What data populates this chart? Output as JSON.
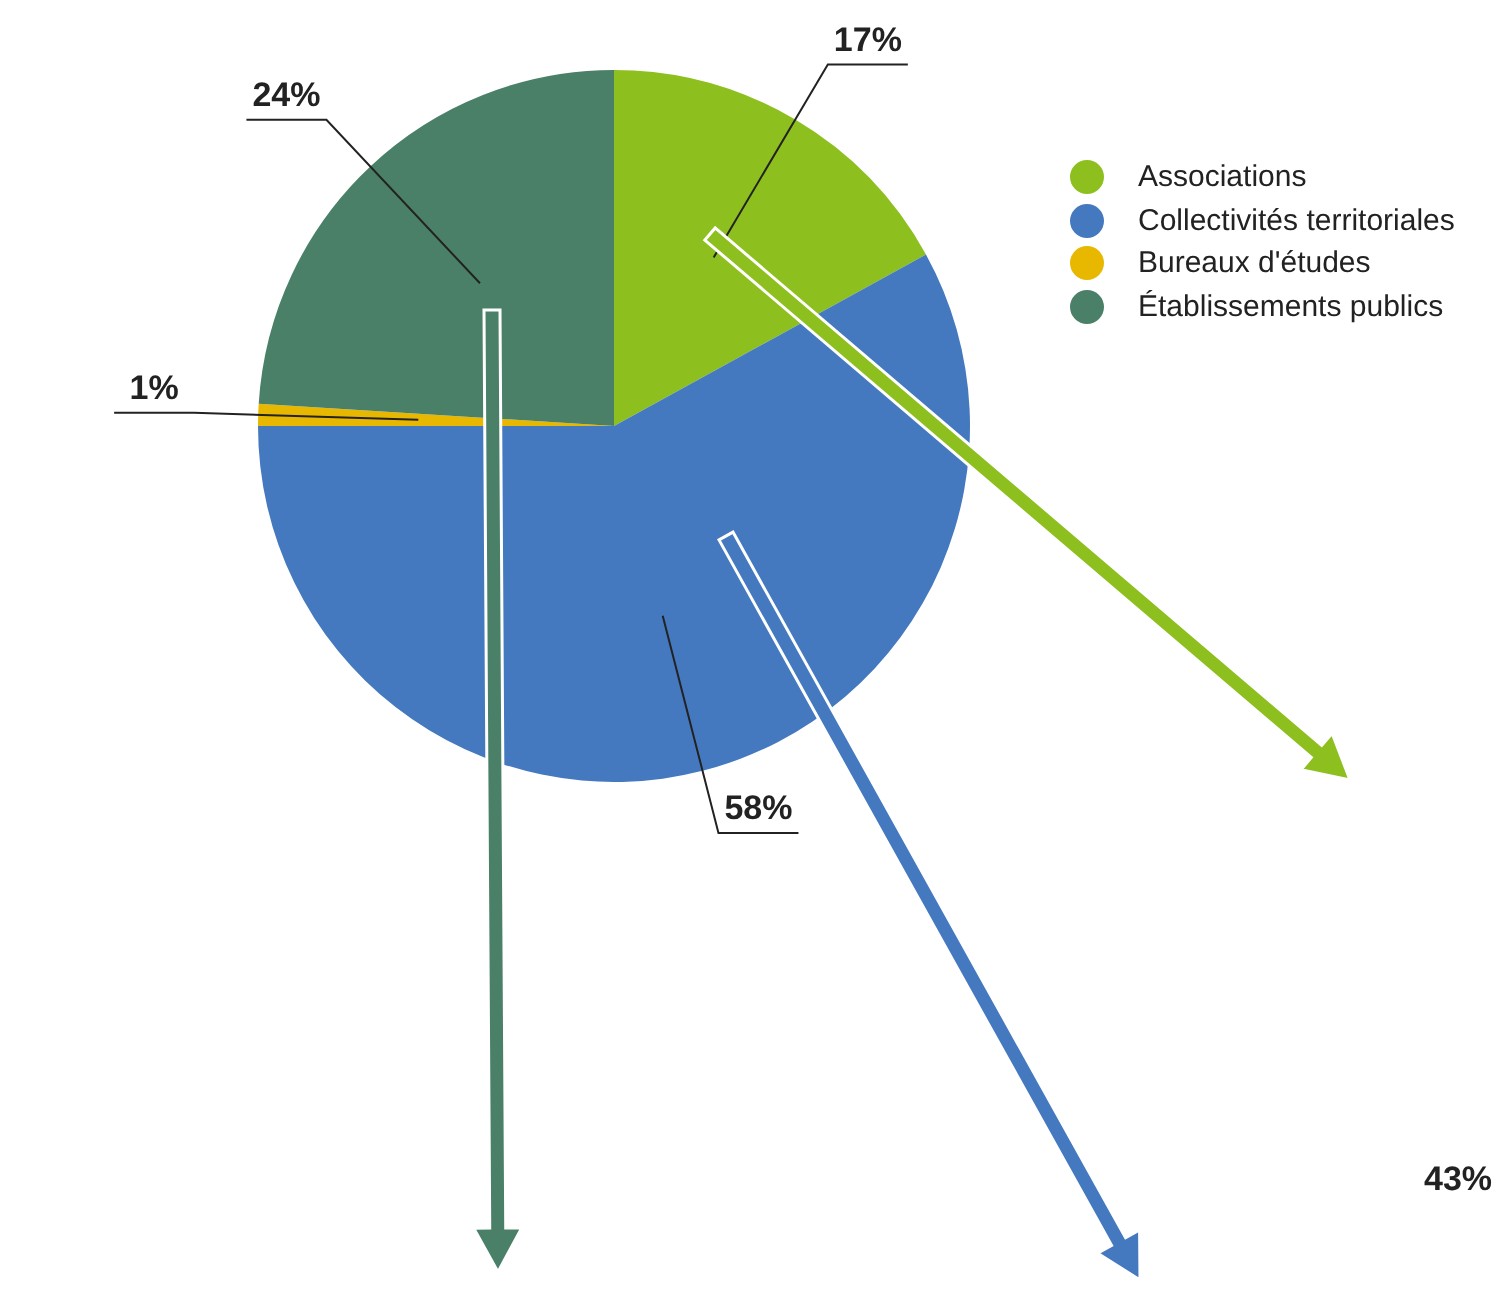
{
  "chart_data": {
    "type": "pie",
    "categories": [
      "Associations",
      "Collectivités territoriales",
      "Bureaux d'études",
      "Établissements publics"
    ],
    "values": [
      17,
      58,
      1,
      24
    ],
    "colors": [
      "#8dbf1e",
      "#4479c0",
      "#e8b800",
      "#4a8068"
    ],
    "value_labels": [
      "17%",
      "58%",
      "1%",
      "24%"
    ],
    "legend": "right",
    "annotations": [
      "43%"
    ]
  }
}
